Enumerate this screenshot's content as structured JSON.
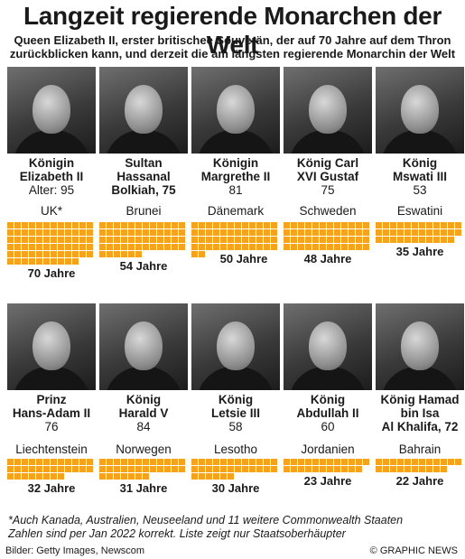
{
  "header": {
    "title": "Langzeit regierende Monarchen der Welt",
    "subtitle_line1": "Queen Elizabeth II, erster britischee Souverän, der auf 70 Jahre auf dem Thron",
    "subtitle_line2": "zurückblicken kann, und derzeit die am längsten regierende Monarchin der Welt"
  },
  "monarchs": [
    {
      "line1": "Königin",
      "line2": "Elizabeth II",
      "line3": "Alter: 95",
      "country": "UK*",
      "years": 70,
      "years_label": "70 Jahre",
      "age": 95
    },
    {
      "line1": "Sultan",
      "line2": "Hassanal",
      "line3": "Bolkiah, 75",
      "country": "Brunei",
      "years": 54,
      "years_label": "54 Jahre",
      "age": 75
    },
    {
      "line1": "Königin",
      "line2": "Margrethe II",
      "line3": "81",
      "country": "Dänemark",
      "years": 50,
      "years_label": "50 Jahre",
      "age": 81
    },
    {
      "line1": "König Carl",
      "line2": "XVI Gustaf",
      "line3": "75",
      "country": "Schweden",
      "years": 48,
      "years_label": "48 Jahre",
      "age": 75
    },
    {
      "line1": "König",
      "line2": "Mswati III",
      "line3": "53",
      "country": "Eswatini",
      "years": 35,
      "years_label": "35 Jahre",
      "age": 53
    },
    {
      "line1": "Prinz",
      "line2": "Hans-Adam II",
      "line3": "76",
      "country": "Liechtenstein",
      "years": 32,
      "years_label": "32 Jahre",
      "age": 76
    },
    {
      "line1": "König",
      "line2": "Harald V",
      "line3": "84",
      "country": "Norwegen",
      "years": 31,
      "years_label": "31 Jahre",
      "age": 84
    },
    {
      "line1": "König",
      "line2": "Letsie III",
      "line3": "58",
      "country": "Lesotho",
      "years": 30,
      "years_label": "30 Jahre",
      "age": 58
    },
    {
      "line1": "König",
      "line2": "Abdullah II",
      "line3": "60",
      "country": "Jordanien",
      "years": 23,
      "years_label": "23 Jahre",
      "age": 60
    },
    {
      "line1": "König Hamad",
      "line2": "bin Isa",
      "line3": "Al Khalifa, 72",
      "country": "Bahrain",
      "years": 22,
      "years_label": "22 Jahre",
      "age": 72
    }
  ],
  "footer": {
    "note1": "*Auch Kanada, Australien, Neuseeland und 11 weitere Commonwealth Staaten",
    "note2": "Zahlen sind per Jan 2022 korrekt. Liste zeigt nur Staatsoberhäupter",
    "credit": "Bilder: Getty Images, Newscom",
    "brand": "© GRAPHIC NEWS"
  },
  "colors": {
    "accent": "#f5a21c"
  }
}
